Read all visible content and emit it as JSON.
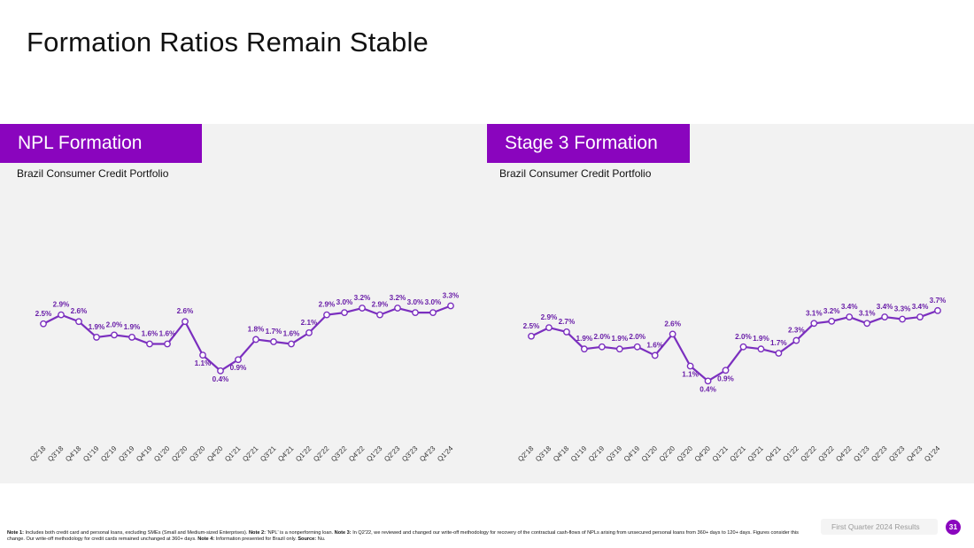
{
  "page": {
    "title": "Formation Ratios Remain Stable",
    "footer_label": "First Quarter 2024 Results",
    "page_number": "31"
  },
  "footnotes": {
    "note1_label": "Note 1:",
    "note1_text": " Includes both credit card and personal loans, excluding SMEs (Small and Medium-sized Enterprises). ",
    "note2_label": "Note 2:",
    "note2_text": " 'NPL' is a nonperforming loan. ",
    "note3_label": "Note 3:",
    "note3_text": " In Q2'22, we reviewed and changed our write-off methodology for recovery of the contractual cash-flows of NPLs arising from unsecured personal loans from 360+ days to 120+ days. Figures consider this change. Our write-off methodology for credit cards remained unchanged at 360+ days. ",
    "note4_label": "Note 4:",
    "note4_text": " Information presented for Brazil only. ",
    "source_label": "Source:",
    "source_text": " Nu."
  },
  "colors": {
    "accent": "#8a05be",
    "line": "#7b2fbf",
    "label": "#6a1fa8"
  },
  "chart_data": [
    {
      "type": "line",
      "title": "NPL Formation",
      "subtitle": "Brazil Consumer Credit Portfolio",
      "categories": [
        "Q2'18",
        "Q3'18",
        "Q4'18",
        "Q1'19",
        "Q2'19",
        "Q3'19",
        "Q4'19",
        "Q1'20",
        "Q2'20",
        "Q3'20",
        "Q4'20",
        "Q1'21",
        "Q2'21",
        "Q3'21",
        "Q4'21",
        "Q1'22",
        "Q2'22",
        "Q3'22",
        "Q4'22",
        "Q1'23",
        "Q2'23",
        "Q3'23",
        "Q4'23",
        "Q1'24"
      ],
      "values": [
        2.5,
        2.9,
        2.6,
        1.9,
        2.0,
        1.9,
        1.6,
        1.6,
        2.6,
        1.1,
        0.4,
        0.9,
        1.8,
        1.7,
        1.6,
        2.1,
        2.9,
        3.0,
        3.2,
        2.9,
        3.2,
        3.0,
        3.0,
        3.3
      ],
      "labels": [
        "2.5%",
        "2.9%",
        "2.6%",
        "1.9%",
        "2.0%",
        "1.9%",
        "1.6%",
        "1.6%",
        "2.6%",
        "1.1%",
        "0.4%",
        "0.9%",
        "1.8%",
        "1.7%",
        "1.6%",
        "2.1%",
        "2.9%",
        "3.0%",
        "3.2%",
        "2.9%",
        "3.2%",
        "3.0%",
        "3.0%",
        "3.3%"
      ],
      "ylim": [
        0,
        10
      ],
      "grid": false
    },
    {
      "type": "line",
      "title": "Stage 3 Formation",
      "subtitle": "Brazil Consumer Credit Portfolio",
      "categories": [
        "Q2'18",
        "Q3'18",
        "Q4'18",
        "Q1'19",
        "Q2'19",
        "Q3'19",
        "Q4'19",
        "Q1'20",
        "Q2'20",
        "Q3'20",
        "Q4'20",
        "Q1'21",
        "Q2'21",
        "Q3'21",
        "Q4'21",
        "Q1'22",
        "Q2'22",
        "Q3'22",
        "Q4'22",
        "Q1'23",
        "Q2'23",
        "Q3'23",
        "Q4'23",
        "Q1'24"
      ],
      "values": [
        2.5,
        2.9,
        2.7,
        1.9,
        2.0,
        1.9,
        2.0,
        1.6,
        2.6,
        1.1,
        0.4,
        0.9,
        2.0,
        1.9,
        1.7,
        2.3,
        3.1,
        3.2,
        3.4,
        3.1,
        3.4,
        3.3,
        3.4,
        3.7
      ],
      "labels": [
        "2.5%",
        "2.9%",
        "2.7%",
        "1.9%",
        "2.0%",
        "1.9%",
        "2.0%",
        "1.6%",
        "2.6%",
        "1.1%",
        "0.4%",
        "0.9%",
        "2.0%",
        "1.9%",
        "1.7%",
        "2.3%",
        "3.1%",
        "3.2%",
        "3.4%",
        "3.1%",
        "3.4%",
        "3.3%",
        "3.4%",
        "3.7%"
      ],
      "ylim": [
        0,
        10
      ],
      "grid": false
    }
  ]
}
